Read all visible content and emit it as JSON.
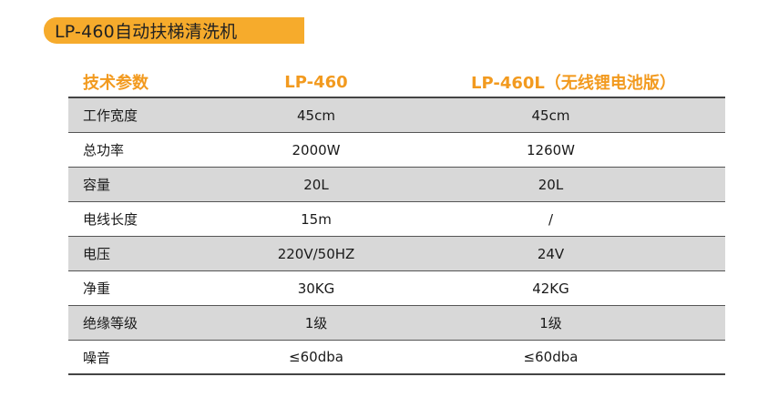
{
  "title": "LP-460自动扶梯清洗机",
  "colors": {
    "accent": "#f6ab2c",
    "header_text": "#f29a1f",
    "row_shade": "#d8d8d8"
  },
  "table": {
    "headers": [
      "技术参数",
      "LP-460",
      "LP-460L（无线锂电池版）"
    ],
    "rows": [
      [
        "工作宽度",
        "45cm",
        "45cm"
      ],
      [
        "总功率",
        "2000W",
        "1260W"
      ],
      [
        "容量",
        "20L",
        "20L"
      ],
      [
        "电线长度",
        "15m",
        "/"
      ],
      [
        "电压",
        "220V/50HZ",
        "24V"
      ],
      [
        "净重",
        "30KG",
        "42KG"
      ],
      [
        "绝缘等级",
        "1级",
        "1级"
      ],
      [
        "噪音",
        "≤60dba",
        "≤60dba"
      ]
    ]
  }
}
